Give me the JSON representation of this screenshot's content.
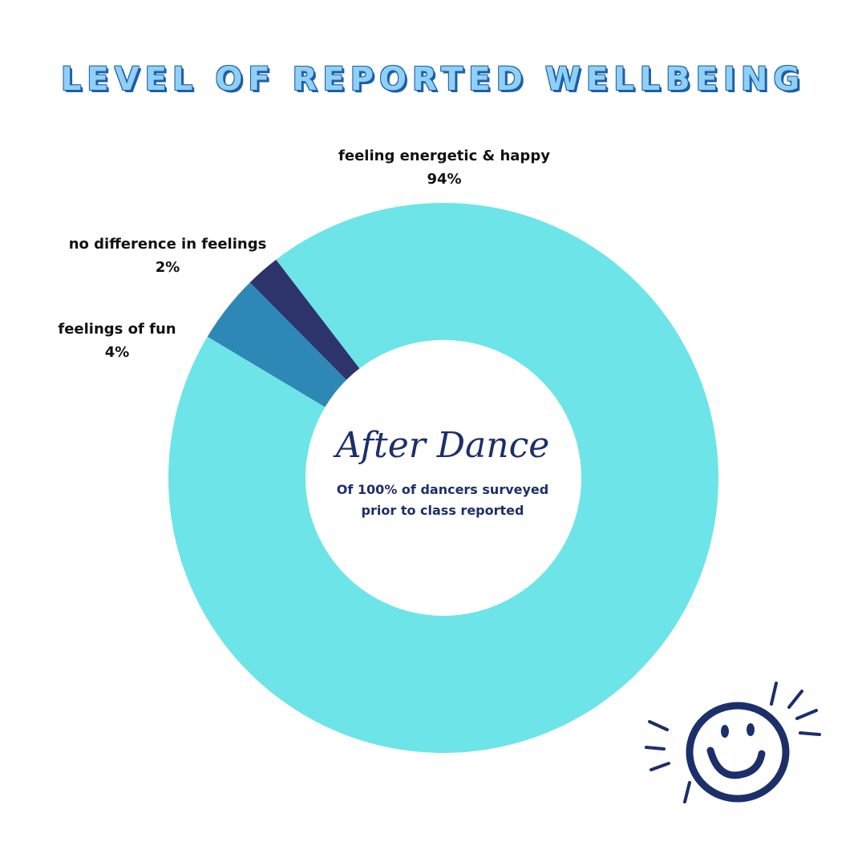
{
  "title": "LEVEL OF REPORTED WELLBEING",
  "center": {
    "heading": "After Dance",
    "line1": "Of 100% of dancers surveyed",
    "line2": "prior to class reported"
  },
  "labels": {
    "energetic": {
      "name": "feeling energetic & happy",
      "value": "94%"
    },
    "nodiff": {
      "name": "no difference in feelings",
      "value": "2%"
    },
    "fun": {
      "name": "feelings of fun",
      "value": "4%"
    }
  },
  "chart_data": {
    "type": "pie",
    "title": "LEVEL OF REPORTED WELLBEING",
    "series": [
      {
        "name": "feeling energetic & happy",
        "value": 94,
        "color": "#6de4e8"
      },
      {
        "name": "no difference in feelings",
        "value": 2,
        "color": "#2d346b"
      },
      {
        "name": "feelings of fun",
        "value": 4,
        "color": "#2e88b6"
      }
    ],
    "donut": true
  },
  "colors": {
    "title_fill": "#8fd0f7",
    "title_outline": "#1e5fa5",
    "text_dark": "#1c2f6b",
    "smiley": "#1c2f6b"
  },
  "icons": {
    "decoration": "smiley-face-icon"
  }
}
